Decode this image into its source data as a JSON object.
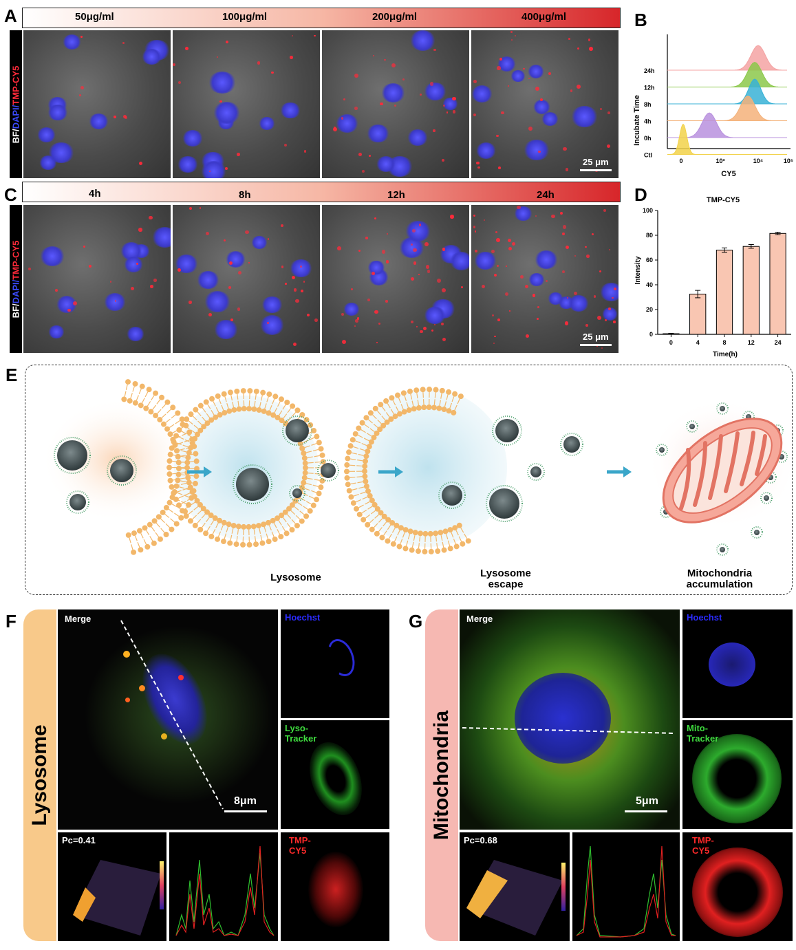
{
  "panels": {
    "A": "A",
    "B": "B",
    "C": "C",
    "D": "D",
    "E": "E",
    "F": "F",
    "G": "G"
  },
  "panel_a": {
    "concentrations": [
      "50μg/ml",
      "100μg/ml",
      "200μg/ml",
      "400μg/ml"
    ],
    "side_label_bf": "BF/",
    "side_label_dapi": "DAPI/",
    "side_label_tmp": "TMP-CY5",
    "scale": "25 μm"
  },
  "panel_c": {
    "times": [
      "4h",
      "8h",
      "12h",
      "24h"
    ],
    "scale": "25 μm"
  },
  "panel_b": {
    "ylabel": "Incubate Time",
    "xlabel": "CY5",
    "rows": [
      "24h",
      "12h",
      "8h",
      "4h",
      "0h",
      "Ctl"
    ],
    "ticks": [
      "0",
      "10³",
      "10⁴",
      "10⁵"
    ],
    "colors": [
      "#f4a3a3",
      "#8cc84b",
      "#38b2d6",
      "#f4b27a",
      "#b890de",
      "#f2d24a"
    ]
  },
  "panel_e": {
    "labels": [
      "Lysosome",
      "Lysosome escape",
      "Mitochondria accumulation"
    ],
    "label_lines": [
      [
        "Lysosome"
      ],
      [
        "Lysosome",
        "escape"
      ],
      [
        "Mitochondria",
        "accumulation"
      ]
    ]
  },
  "panel_f": {
    "band": "Lysosome",
    "band_color": "#f8c98a",
    "merge": "Merge",
    "hoechst": "Hoechst",
    "tracker_1": "Lyso-",
    "tracker_2": "Tracker",
    "tmp_1": "TMP-",
    "tmp_2": "CY5",
    "pc": "Pc=0.41",
    "scale": "8μm"
  },
  "panel_g": {
    "band": "Mitochondria",
    "band_color": "#f6b8b2",
    "merge": "Merge",
    "hoechst": "Hoechst",
    "tracker_1": "Mito-",
    "tracker_2": "Tracker",
    "tmp_1": "TMP-",
    "tmp_2": "CY5",
    "pc": "Pc=0.68",
    "scale": "5μm"
  },
  "chart_data": {
    "type": "bar",
    "title": "TMP-CY5",
    "xlabel": "Time(h)",
    "ylabel": "Intensity",
    "categories": [
      "0",
      "4",
      "8",
      "12",
      "24"
    ],
    "values": [
      0.5,
      32.5,
      68,
      71,
      81.5
    ],
    "errors": [
      0.3,
      3.0,
      1.8,
      1.5,
      1.0
    ],
    "ylim": [
      0,
      100
    ],
    "yticks": [
      0,
      20,
      40,
      60,
      80,
      100
    ],
    "bar_color": "#f9c6b2"
  }
}
